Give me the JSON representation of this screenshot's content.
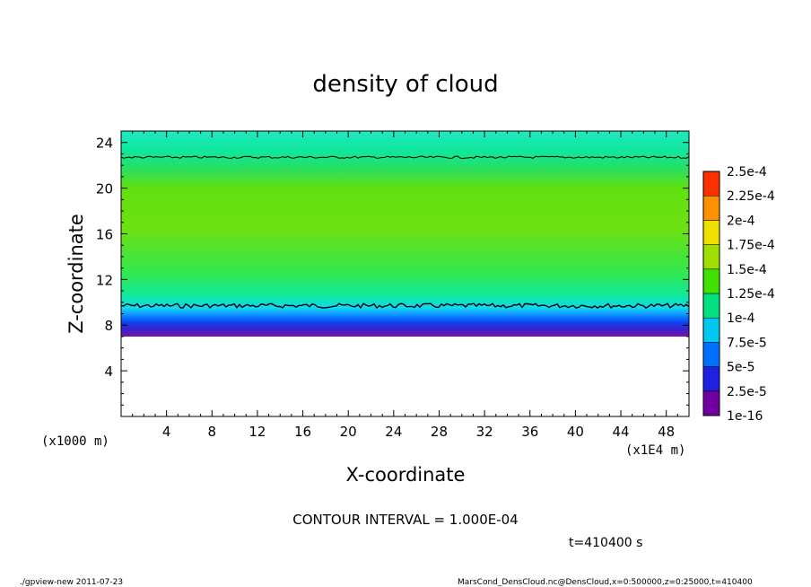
{
  "chart_data": {
    "type": "heatmap",
    "title": "density of cloud",
    "xlabel": "X-coordinate",
    "ylabel": "Z-coordinate",
    "x_unit": "(x1E4 m)",
    "z_unit": "(x1000 m)",
    "xlim": [
      0,
      50
    ],
    "ylim": [
      0,
      25
    ],
    "x_ticks": [
      4,
      8,
      12,
      16,
      20,
      24,
      28,
      32,
      36,
      40,
      44,
      48
    ],
    "y_ticks": [
      4,
      8,
      12,
      16,
      20,
      24
    ],
    "cloud_base_z": 7,
    "cloud_top_z": 25,
    "contour_levels_z": [
      9.7,
      22.7
    ],
    "colorbar": {
      "labels": [
        "1e-16",
        "2.5e-5",
        "5e-5",
        "7.5e-5",
        "1e-4",
        "1.25e-4",
        "1.5e-4",
        "1.75e-4",
        "2e-4",
        "2.25e-4",
        "2.5e-4"
      ],
      "colors": [
        "#7000a0",
        "#2020e0",
        "#0070ff",
        "#00c8f0",
        "#00e080",
        "#40e000",
        "#a0e000",
        "#f0e000",
        "#ff9000",
        "#ff3000",
        "#ff9090"
      ]
    },
    "vertical_profile": [
      {
        "z": 7.0,
        "color": "#7a10a8"
      },
      {
        "z": 7.6,
        "color": "#3a20c8"
      },
      {
        "z": 8.2,
        "color": "#1040f0"
      },
      {
        "z": 8.7,
        "color": "#0a78ff"
      },
      {
        "z": 9.1,
        "color": "#10a8ff"
      },
      {
        "z": 9.5,
        "color": "#10d8f0"
      },
      {
        "z": 10.5,
        "color": "#10e8a0"
      },
      {
        "z": 12.5,
        "color": "#30e850"
      },
      {
        "z": 16.5,
        "color": "#6ee010"
      },
      {
        "z": 20.0,
        "color": "#60e010"
      },
      {
        "z": 22.0,
        "color": "#20e070"
      },
      {
        "z": 23.5,
        "color": "#10e8a0"
      },
      {
        "z": 25.0,
        "color": "#20e8c0"
      }
    ]
  },
  "annotations": {
    "contour_interval": "CONTOUR INTERVAL = 1.000E-04",
    "time": "t=410400 s",
    "footer_left": "./gpview-new  2011-07-23",
    "footer_right": "MarsCond_DensCloud.nc@DensCloud,x=0:500000,z=0:25000,t=410400"
  }
}
